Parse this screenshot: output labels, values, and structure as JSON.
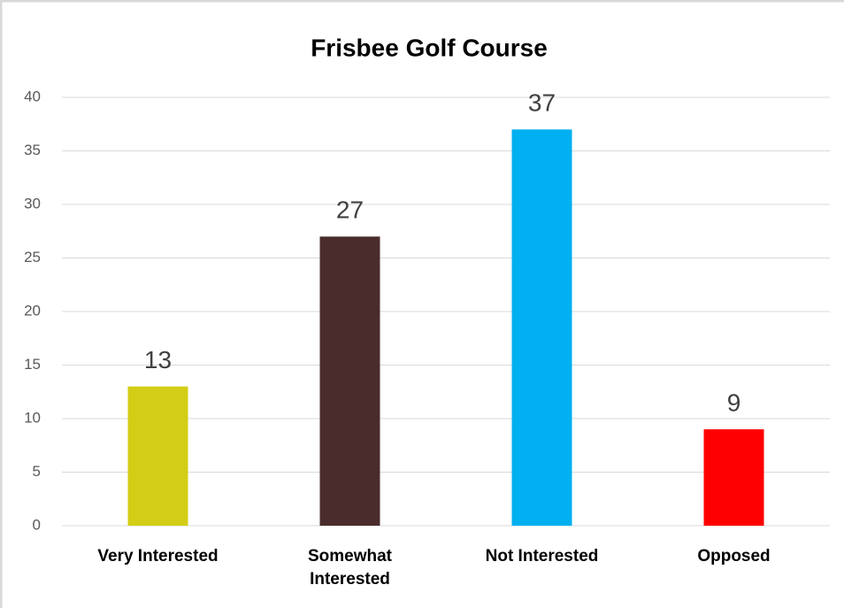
{
  "chart_data": {
    "type": "bar",
    "title": "Frisbee Golf Course",
    "categories": [
      "Very Interested",
      "Somewhat Interested",
      "Not Interested",
      "Opposed"
    ],
    "values": [
      13,
      27,
      37,
      9
    ],
    "colors": [
      "#d4cd16",
      "#4a2c2c",
      "#00b0f0",
      "#ff0000"
    ],
    "ylim": [
      0,
      40
    ],
    "yticks": [
      0,
      5,
      10,
      15,
      20,
      25,
      30,
      35,
      40
    ],
    "grid": true
  }
}
